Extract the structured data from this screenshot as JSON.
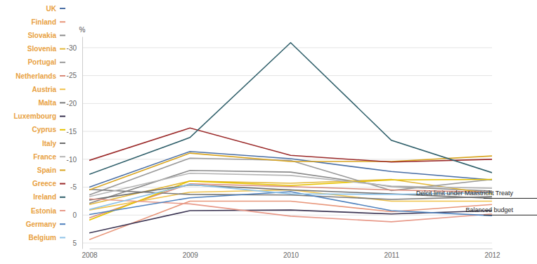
{
  "chart_data": {
    "type": "line",
    "y_label": "%",
    "x": [
      2008,
      2009,
      2010,
      2011,
      2012
    ],
    "xlim": [
      2008,
      2012
    ],
    "xticks": [
      2008,
      2009,
      2010,
      2011,
      2012
    ],
    "ylim": [
      -32,
      6
    ],
    "yticks": [
      5,
      0,
      -5,
      -10,
      -15,
      -20,
      -25,
      -30
    ],
    "grid": true,
    "legend": "left",
    "annotations": [
      {
        "text": "Balanced budget",
        "y": 0
      },
      {
        "text": "Delcit limit under Maastricht Treaty",
        "y": -3
      }
    ],
    "series": [
      {
        "name": "UK",
        "color": "#4a6fa5",
        "values": [
          -5.0,
          -11.4,
          -10.1,
          -7.8,
          -6.3
        ]
      },
      {
        "name": "Finland",
        "color": "#e8967a",
        "values": [
          4.4,
          -2.5,
          -2.5,
          -0.6,
          -1.9
        ]
      },
      {
        "name": "Slovakia",
        "color": "#8c8c8c",
        "values": [
          -2.1,
          -8.0,
          -7.7,
          -5.1,
          -4.3
        ]
      },
      {
        "name": "Slovenia",
        "color": "#e3b83a",
        "values": [
          -1.9,
          -6.1,
          -5.7,
          -6.4,
          -3.8
        ]
      },
      {
        "name": "Portugal",
        "color": "#9a9a9a",
        "values": [
          -3.6,
          -10.2,
          -9.8,
          -4.4,
          -6.4
        ]
      },
      {
        "name": "Netherlands",
        "color": "#d98a7a",
        "values": [
          0.5,
          -5.6,
          -5.1,
          -4.5,
          -4.1
        ]
      },
      {
        "name": "Austria",
        "color": "#f0c24a",
        "values": [
          -0.9,
          -4.1,
          -4.5,
          -2.5,
          -2.5
        ]
      },
      {
        "name": "Malta",
        "color": "#7a7a7a",
        "values": [
          -4.6,
          -3.7,
          -3.6,
          -2.8,
          -3.3
        ]
      },
      {
        "name": "Luxembourg",
        "color": "#3c3553",
        "values": [
          3.2,
          -0.8,
          -0.9,
          -0.2,
          -0.8
        ]
      },
      {
        "name": "Cyprus",
        "color": "#e6c200",
        "values": [
          0.9,
          -6.1,
          -5.3,
          -6.3,
          -6.4
        ]
      },
      {
        "name": "Italy",
        "color": "#6e6e6e",
        "values": [
          -2.7,
          -5.4,
          -4.5,
          -3.8,
          -3.0
        ]
      },
      {
        "name": "France",
        "color": "#b5b5b5",
        "values": [
          -3.3,
          -7.5,
          -7.1,
          -5.2,
          -4.8
        ]
      },
      {
        "name": "Spain",
        "color": "#d9a520",
        "values": [
          -4.5,
          -11.1,
          -9.6,
          -9.6,
          -10.6
        ]
      },
      {
        "name": "Greece",
        "color": "#9b2a2a",
        "values": [
          -9.8,
          -15.6,
          -10.7,
          -9.5,
          -10.0
        ]
      },
      {
        "name": "Ireland",
        "color": "#2f5f6a",
        "values": [
          -7.3,
          -13.9,
          -30.9,
          -13.4,
          -7.6
        ]
      },
      {
        "name": "Estonia",
        "color": "#e89a8a",
        "values": [
          -2.9,
          -2.0,
          0.2,
          1.2,
          -0.2
        ]
      },
      {
        "name": "Germany",
        "color": "#4f81bd",
        "values": [
          -0.1,
          -3.1,
          -4.2,
          -0.8,
          0.1
        ]
      },
      {
        "name": "Belgium",
        "color": "#8fc3e8",
        "values": [
          -1.0,
          -5.5,
          -3.8,
          -3.7,
          -4.0
        ]
      }
    ]
  }
}
